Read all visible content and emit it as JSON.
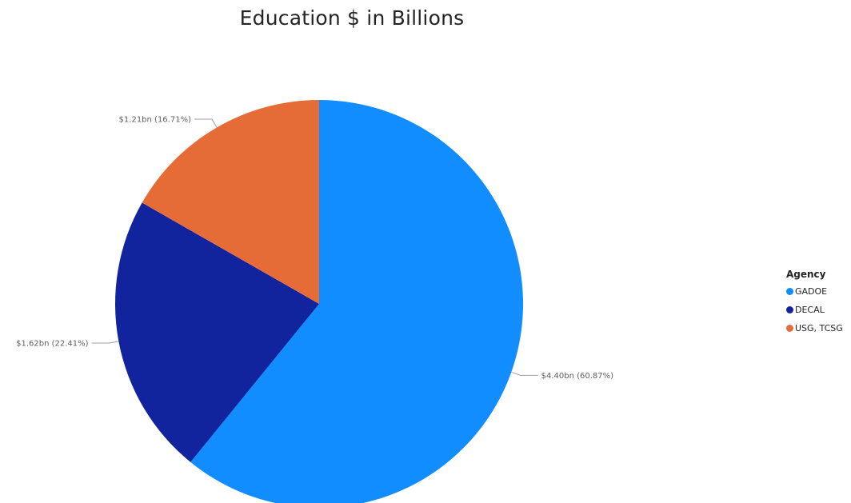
{
  "chart_data": {
    "type": "pie",
    "title": "Education $ in Billions",
    "legend_title": "Agency",
    "legend_position": "right",
    "slices": [
      {
        "name": "GADOE",
        "value": 4.4,
        "percent": 60.87,
        "label": "$4.40bn (60.87%)",
        "color": "#118dff"
      },
      {
        "name": "DECAL",
        "value": 1.62,
        "percent": 22.41,
        "label": "$1.62bn (22.41%)",
        "color": "#12239e"
      },
      {
        "name": "USG, TCSG",
        "value": 1.21,
        "percent": 16.71,
        "label": "$1.21bn (16.71%)",
        "color": "#e66c37"
      }
    ]
  }
}
